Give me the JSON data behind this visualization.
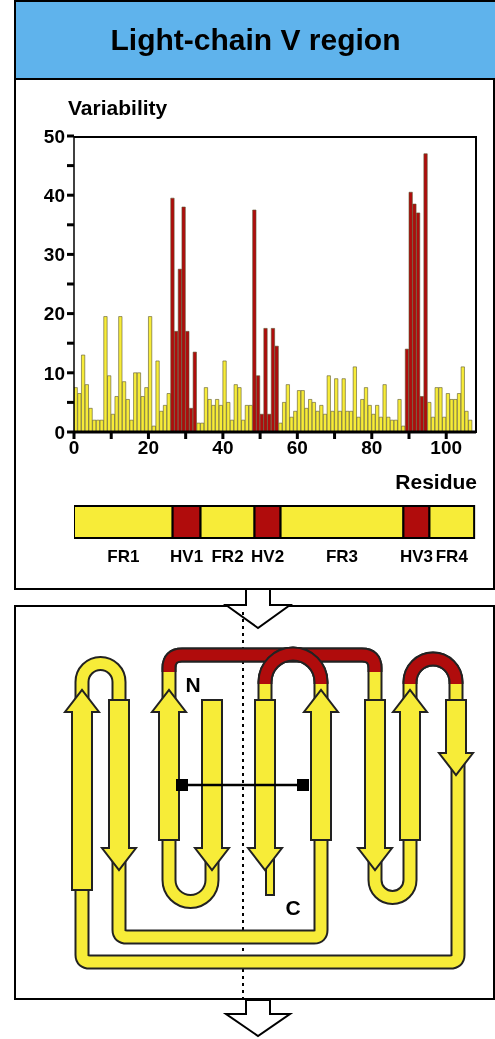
{
  "chart_data": [
    {
      "type": "histogram",
      "title": "Light-chain V region",
      "ylabel": "Variability",
      "xlabel": "Residue",
      "bins": [
        0,
        1,
        2,
        3,
        4,
        5,
        6,
        7,
        8,
        9,
        10,
        11,
        12,
        13,
        14,
        15,
        16,
        17,
        18,
        19,
        20,
        21,
        22,
        23,
        24,
        25,
        26,
        27,
        28,
        29,
        30,
        31,
        32,
        33,
        34,
        35,
        36,
        37,
        38,
        39,
        40,
        41,
        42,
        43,
        44,
        45,
        46,
        47,
        48,
        49,
        50,
        51,
        52,
        53,
        54,
        55,
        56,
        57,
        58,
        59,
        60,
        61,
        62,
        63,
        64,
        65,
        66,
        67,
        68,
        69,
        70,
        71,
        72,
        73,
        74,
        75,
        76,
        77,
        78,
        79,
        80,
        81,
        82,
        83,
        84,
        85,
        86,
        87,
        88,
        89,
        90,
        91,
        92,
        93,
        94,
        95,
        96,
        97,
        98,
        99,
        100,
        101,
        102,
        103,
        104,
        105,
        106,
        107
      ],
      "values": [
        7.5,
        6.5,
        13,
        8,
        4,
        2,
        2,
        2,
        19.5,
        9.5,
        3,
        6,
        19.5,
        8.5,
        5.5,
        2,
        10,
        10,
        6,
        7.5,
        19.5,
        1,
        12,
        3.5,
        4.5,
        6.5,
        39.5,
        17,
        27.5,
        38,
        17,
        4,
        13.5,
        1.5,
        1.5,
        7.5,
        5.5,
        4.5,
        5.5,
        4.5,
        12,
        5,
        2,
        8,
        7.5,
        2,
        4.5,
        4.5,
        37.5,
        9.5,
        3,
        17.5,
        3,
        17.5,
        14.5,
        1.5,
        5,
        8,
        2.5,
        3.5,
        7,
        7,
        4,
        5.5,
        5,
        3.5,
        4.5,
        3,
        9.5,
        3.5,
        9,
        3.5,
        9,
        3.5,
        3.5,
        11,
        2.5,
        5.5,
        7.5,
        4.5,
        3,
        4.5,
        2.5,
        8,
        2.5,
        2,
        2,
        5.5,
        1,
        14,
        40.5,
        38.5,
        37,
        6,
        47,
        5,
        2.5,
        7.5,
        7.5,
        2.5,
        6.5,
        5.5,
        5.5,
        6.5,
        11,
        3.5,
        2
      ],
      "colors": [
        "#f7ec38",
        "#f7ec38",
        "#f7ec38",
        "#f7ec38",
        "#f7ec38",
        "#f7ec38",
        "#f7ec38",
        "#f7ec38",
        "#f7ec38",
        "#f7ec38",
        "#f7ec38",
        "#f7ec38",
        "#f7ec38",
        "#f7ec38",
        "#f7ec38",
        "#f7ec38",
        "#f7ec38",
        "#f7ec38",
        "#f7ec38",
        "#f7ec38",
        "#f7ec38",
        "#f7ec38",
        "#f7ec38",
        "#f7ec38",
        "#f7ec38",
        "#f7ec38",
        "#b00c0c",
        "#b00c0c",
        "#b00c0c",
        "#b00c0c",
        "#b00c0c",
        "#b00c0c",
        "#b00c0c",
        "#f7ec38",
        "#f7ec38",
        "#f7ec38",
        "#f7ec38",
        "#f7ec38",
        "#f7ec38",
        "#f7ec38",
        "#f7ec38",
        "#f7ec38",
        "#f7ec38",
        "#f7ec38",
        "#f7ec38",
        "#f7ec38",
        "#f7ec38",
        "#f7ec38",
        "#b00c0c",
        "#b00c0c",
        "#b00c0c",
        "#b00c0c",
        "#b00c0c",
        "#b00c0c",
        "#b00c0c",
        "#f7ec38",
        "#f7ec38",
        "#f7ec38",
        "#f7ec38",
        "#f7ec38",
        "#f7ec38",
        "#f7ec38",
        "#f7ec38",
        "#f7ec38",
        "#f7ec38",
        "#f7ec38",
        "#f7ec38",
        "#f7ec38",
        "#f7ec38",
        "#f7ec38",
        "#f7ec38",
        "#f7ec38",
        "#f7ec38",
        "#f7ec38",
        "#f7ec38",
        "#f7ec38",
        "#f7ec38",
        "#f7ec38",
        "#f7ec38",
        "#f7ec38",
        "#f7ec38",
        "#f7ec38",
        "#f7ec38",
        "#f7ec38",
        "#f7ec38",
        "#f7ec38",
        "#f7ec38",
        "#f7ec38",
        "#f7ec38",
        "#b00c0c",
        "#b00c0c",
        "#b00c0c",
        "#b00c0c",
        "#b00c0c",
        "#b00c0c",
        "#f7ec38",
        "#f7ec38",
        "#f7ec38",
        "#f7ec38",
        "#f7ec38",
        "#f7ec38",
        "#f7ec38",
        "#f7ec38",
        "#f7ec38",
        "#f7ec38",
        "#f7ec38",
        "#f7ec38"
      ],
      "xlim": [
        0,
        108
      ],
      "ylim": [
        0,
        50
      ],
      "xticks": [
        0,
        {
          "value": 10,
          "label": null
        },
        20,
        {
          "value": 30,
          "label": null
        },
        40,
        {
          "value": 50,
          "label": null
        },
        60,
        {
          "value": 70,
          "label": null
        },
        80,
        {
          "value": 90,
          "label": null
        },
        100
      ],
      "yticks": [
        0,
        {
          "value": 5,
          "label": null
        },
        10,
        {
          "value": 15,
          "label": null
        },
        20,
        {
          "value": 25,
          "label": null
        },
        30,
        {
          "value": 35,
          "label": null
        },
        40,
        {
          "value": 45,
          "label": null
        },
        50
      ]
    },
    {
      "type": "bar",
      "orientation": "horizontal",
      "stacked": true,
      "categories": [
        null
      ],
      "xlim": [
        0,
        108
      ],
      "tick_labels": false,
      "series": [
        {
          "name": "FR1",
          "color": "#f7ec38",
          "values": [
            26.5
          ]
        },
        {
          "name": "HV1",
          "color": "#b00c0c",
          "values": [
            7.5
          ]
        },
        {
          "name": "FR2",
          "color": "#f7ec38",
          "values": [
            14.5
          ]
        },
        {
          "name": "HV2",
          "color": "#b00c0c",
          "values": [
            7
          ]
        },
        {
          "name": "FR3",
          "color": "#f7ec38",
          "values": [
            33
          ]
        },
        {
          "name": "HV3",
          "color": "#b00c0c",
          "values": [
            7
          ]
        },
        {
          "name": "FR4",
          "color": "#f7ec38",
          "values": [
            12
          ]
        }
      ]
    },
    {
      "type": "other",
      "annotations": [
        "N",
        "C"
      ]
    }
  ]
}
